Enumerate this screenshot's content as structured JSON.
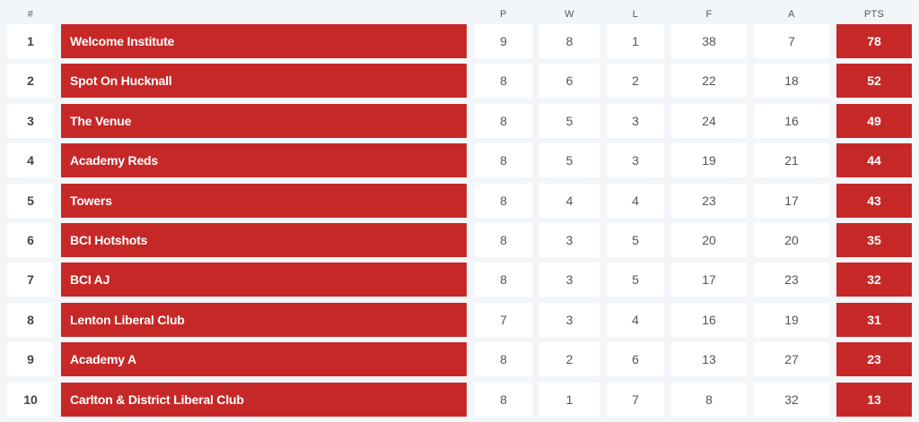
{
  "headers": {
    "rank": "#",
    "played": "P",
    "won": "W",
    "lost": "L",
    "for": "F",
    "against": "A",
    "points": "PTS"
  },
  "rows": [
    {
      "rank": "1",
      "team": "Welcome Institute",
      "p": "9",
      "w": "8",
      "l": "1",
      "f": "38",
      "a": "7",
      "pts": "78"
    },
    {
      "rank": "2",
      "team": "Spot On Hucknall",
      "p": "8",
      "w": "6",
      "l": "2",
      "f": "22",
      "a": "18",
      "pts": "52"
    },
    {
      "rank": "3",
      "team": "The Venue",
      "p": "8",
      "w": "5",
      "l": "3",
      "f": "24",
      "a": "16",
      "pts": "49"
    },
    {
      "rank": "4",
      "team": "Academy Reds",
      "p": "8",
      "w": "5",
      "l": "3",
      "f": "19",
      "a": "21",
      "pts": "44"
    },
    {
      "rank": "5",
      "team": "Towers",
      "p": "8",
      "w": "4",
      "l": "4",
      "f": "23",
      "a": "17",
      "pts": "43"
    },
    {
      "rank": "6",
      "team": "BCI Hotshots",
      "p": "8",
      "w": "3",
      "l": "5",
      "f": "20",
      "a": "20",
      "pts": "35"
    },
    {
      "rank": "7",
      "team": "BCI AJ",
      "p": "8",
      "w": "3",
      "l": "5",
      "f": "17",
      "a": "23",
      "pts": "32"
    },
    {
      "rank": "8",
      "team": "Lenton Liberal Club",
      "p": "7",
      "w": "3",
      "l": "4",
      "f": "16",
      "a": "19",
      "pts": "31"
    },
    {
      "rank": "9",
      "team": "Academy A",
      "p": "8",
      "w": "2",
      "l": "6",
      "f": "13",
      "a": "27",
      "pts": "23"
    },
    {
      "rank": "10",
      "team": "Carlton & District Liberal Club",
      "p": "8",
      "w": "1",
      "l": "7",
      "f": "8",
      "a": "32",
      "pts": "13"
    }
  ],
  "colors": {
    "accent": "#c62828",
    "row_bg": "#ffffff",
    "page_bg": "#f3f6f9"
  }
}
